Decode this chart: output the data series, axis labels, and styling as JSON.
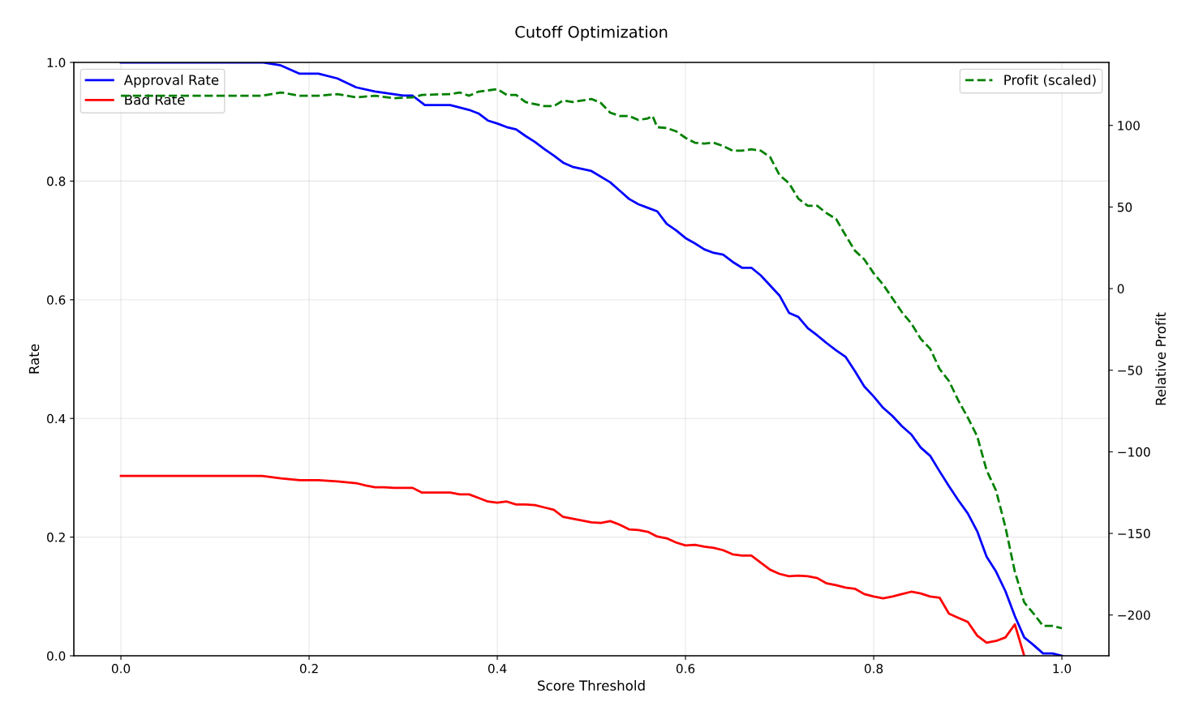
{
  "chart_data": {
    "type": "line",
    "title": "Cutoff Optimization",
    "xlabel": "Score Threshold",
    "ylabel": "Rate",
    "y2label": "Relative Profit",
    "xlim": [
      -0.05,
      1.05
    ],
    "ylim": [
      0,
      1
    ],
    "y2lim": [
      -225,
      138.6
    ],
    "xticks": [
      {
        "value": 0,
        "label": "0.0"
      },
      {
        "value": 0.2,
        "label": "0.2"
      },
      {
        "value": 0.4,
        "label": "0.4"
      },
      {
        "value": 0.6,
        "label": "0.6"
      },
      {
        "value": 0.8,
        "label": "0.8"
      },
      {
        "value": 1,
        "label": "1.0"
      }
    ],
    "yticks": [
      {
        "value": 0,
        "label": "0.0"
      },
      {
        "value": 0.2,
        "label": "0.2"
      },
      {
        "value": 0.4,
        "label": "0.4"
      },
      {
        "value": 0.6,
        "label": "0.6"
      },
      {
        "value": 0.8,
        "label": "0.8"
      },
      {
        "value": 1,
        "label": "1.0"
      }
    ],
    "y2ticks": [
      {
        "value": -200,
        "label": "−200"
      },
      {
        "value": -150,
        "label": "−150"
      },
      {
        "value": -100,
        "label": "−100"
      },
      {
        "value": -50,
        "label": "−50"
      },
      0,
      50,
      100
    ],
    "grid": true,
    "legend": "top left",
    "marker": "none",
    "series": [
      {
        "name": "Approval Rate",
        "color": "#0000ff",
        "line_style": "solid",
        "x": [
          0,
          0.15,
          0.17,
          0.19,
          0.21,
          0.23,
          0.25,
          0.27,
          0.3,
          0.31,
          0.323,
          0.35,
          0.37,
          0.38,
          0.39,
          0.4,
          0.41,
          0.42,
          0.43,
          0.44,
          0.45,
          0.46,
          0.47,
          0.48,
          0.5,
          0.52,
          0.54,
          0.55,
          0.56,
          0.57,
          0.58,
          0.59,
          0.6,
          0.61,
          0.62,
          0.63,
          0.64,
          0.65,
          0.66,
          0.67,
          0.68,
          0.69,
          0.7,
          0.71,
          0.72,
          0.73,
          0.74,
          0.75,
          0.76,
          0.77,
          0.78,
          0.79,
          0.8,
          0.81,
          0.82,
          0.83,
          0.84,
          0.85,
          0.86,
          0.87,
          0.88,
          0.89,
          0.9,
          0.91,
          0.92,
          0.93,
          0.94,
          0.95,
          0.96,
          0.97,
          0.98,
          0.99,
          1.0
        ],
        "values": [
          1.0,
          1.0,
          0.995,
          0.981,
          0.981,
          0.973,
          0.958,
          0.951,
          0.944,
          0.944,
          0.928,
          0.928,
          0.92,
          0.914,
          0.902,
          0.897,
          0.891,
          0.887,
          0.876,
          0.866,
          0.854,
          0.843,
          0.831,
          0.824,
          0.817,
          0.798,
          0.77,
          0.761,
          0.755,
          0.749,
          0.728,
          0.717,
          0.704,
          0.695,
          0.685,
          0.679,
          0.676,
          0.664,
          0.654,
          0.654,
          0.641,
          0.624,
          0.607,
          0.578,
          0.571,
          0.552,
          0.54,
          0.527,
          0.515,
          0.504,
          0.48,
          0.454,
          0.437,
          0.418,
          0.404,
          0.387,
          0.373,
          0.351,
          0.337,
          0.311,
          0.286,
          0.262,
          0.24,
          0.21,
          0.167,
          0.142,
          0.109,
          0.067,
          0.031,
          0.018,
          0.004,
          0.004,
          0.0
        ]
      },
      {
        "name": "Bad Rate",
        "color": "#ff0000",
        "line_style": "solid",
        "x": [
          0,
          0.15,
          0.17,
          0.19,
          0.21,
          0.23,
          0.25,
          0.26,
          0.27,
          0.28,
          0.29,
          0.31,
          0.32,
          0.35,
          0.36,
          0.37,
          0.38,
          0.39,
          0.4,
          0.41,
          0.42,
          0.43,
          0.44,
          0.45,
          0.46,
          0.47,
          0.48,
          0.49,
          0.5,
          0.51,
          0.52,
          0.53,
          0.54,
          0.55,
          0.56,
          0.57,
          0.58,
          0.59,
          0.6,
          0.61,
          0.62,
          0.63,
          0.64,
          0.65,
          0.66,
          0.67,
          0.68,
          0.69,
          0.7,
          0.71,
          0.72,
          0.73,
          0.74,
          0.75,
          0.76,
          0.77,
          0.78,
          0.79,
          0.8,
          0.81,
          0.82,
          0.83,
          0.84,
          0.85,
          0.86,
          0.87,
          0.88,
          0.89,
          0.9,
          0.91,
          0.92,
          0.93,
          0.94,
          0.95,
          0.96
        ],
        "values": [
          0.303,
          0.303,
          0.299,
          0.296,
          0.296,
          0.294,
          0.291,
          0.287,
          0.284,
          0.284,
          0.283,
          0.283,
          0.275,
          0.275,
          0.272,
          0.272,
          0.266,
          0.26,
          0.258,
          0.26,
          0.255,
          0.255,
          0.254,
          0.25,
          0.246,
          0.234,
          0.231,
          0.228,
          0.225,
          0.224,
          0.227,
          0.221,
          0.213,
          0.212,
          0.209,
          0.201,
          0.198,
          0.191,
          0.186,
          0.187,
          0.184,
          0.182,
          0.178,
          0.171,
          0.169,
          0.169,
          0.157,
          0.145,
          0.138,
          0.134,
          0.135,
          0.134,
          0.131,
          0.122,
          0.119,
          0.115,
          0.113,
          0.104,
          0.1,
          0.097,
          0.1,
          0.104,
          0.108,
          0.105,
          0.1,
          0.098,
          0.071,
          0.064,
          0.057,
          0.034,
          0.022,
          0.025,
          0.031,
          0.053,
          0.0
        ]
      },
      {
        "name": "Profit (scaled)",
        "color": "#008000",
        "axis": "y2",
        "line_style": "dashed",
        "x": [
          0,
          0.15,
          0.17,
          0.19,
          0.21,
          0.23,
          0.25,
          0.27,
          0.29,
          0.31,
          0.32,
          0.35,
          0.36,
          0.37,
          0.38,
          0.4,
          0.41,
          0.42,
          0.43,
          0.45,
          0.46,
          0.47,
          0.48,
          0.5,
          0.51,
          0.52,
          0.53,
          0.54,
          0.55,
          0.56,
          0.565,
          0.57,
          0.58,
          0.59,
          0.6,
          0.61,
          0.62,
          0.63,
          0.64,
          0.65,
          0.66,
          0.67,
          0.68,
          0.69,
          0.7,
          0.71,
          0.72,
          0.73,
          0.74,
          0.75,
          0.76,
          0.77,
          0.78,
          0.79,
          0.8,
          0.81,
          0.82,
          0.83,
          0.84,
          0.85,
          0.86,
          0.87,
          0.88,
          0.89,
          0.9,
          0.91,
          0.92,
          0.93,
          0.94,
          0.95,
          0.96,
          0.97,
          0.98,
          0.99,
          1.0
        ],
        "values": [
          118.2,
          118.2,
          120.2,
          118.2,
          118.2,
          119.2,
          117.2,
          118.2,
          116.7,
          117.2,
          118.7,
          119.2,
          120.2,
          118.2,
          120.7,
          122.2,
          118.7,
          118.7,
          114.3,
          111.8,
          111.8,
          115.3,
          114.3,
          116.2,
          113.8,
          107.8,
          105.8,
          105.8,
          103.3,
          104.3,
          105.8,
          98.9,
          98.4,
          96.4,
          92.4,
          89.4,
          88.9,
          89.4,
          87.4,
          84.5,
          84.5,
          85.4,
          84.5,
          80.5,
          69.5,
          64.6,
          55.1,
          50.7,
          50.7,
          46.2,
          42.7,
          32.8,
          23.3,
          17.9,
          9.4,
          2.5,
          -6.0,
          -14.4,
          -21.4,
          -30.8,
          -36.8,
          -49.2,
          -56.6,
          -68.6,
          -79.0,
          -90.4,
          -111.3,
          -123.7,
          -146.1,
          -173.4,
          -192.3,
          -199.2,
          -206.7,
          -206.7,
          -208.1
        ]
      }
    ]
  }
}
